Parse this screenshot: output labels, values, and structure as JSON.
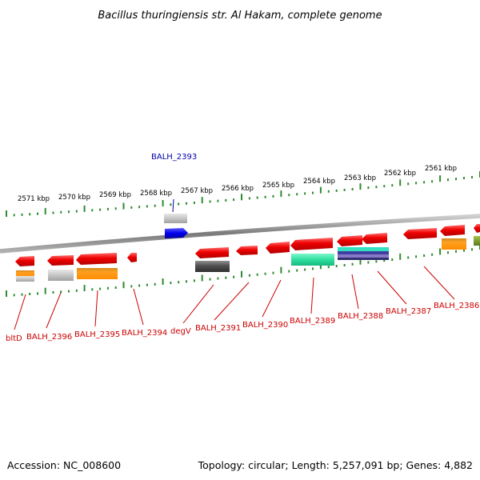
{
  "title": "Bacillus thuringiensis str. Al Hakam, complete genome",
  "footer": {
    "accession": "Accession: NC_008600",
    "summary": "Topology: circular; Length: 5,257,091 bp; Genes: 4,882"
  },
  "colors": {
    "tick": "#2e8b2e",
    "backbone": "#8c8c8c",
    "gene_red": "#e60000",
    "label_red": "#cc0000",
    "label_blue": "#0000aa",
    "blue": "#0000ee",
    "orange": "#ff9900",
    "teal": "#33e0a8",
    "purple": "#5a4fa0",
    "gray_light": "#c8c8c8",
    "gray_dark": "#555555",
    "olive": "#6b8e23"
  },
  "kbp_labels": [
    "2571 kbp",
    "2570 kbp",
    "2569 kbp",
    "2568 kbp",
    "2567 kbp",
    "2566 kbp",
    "2565 kbp",
    "2564 kbp",
    "2563 kbp",
    "2562 kbp",
    "2561 kbp"
  ],
  "genes_top": [
    {
      "name": "BALH_2393"
    }
  ],
  "genes_bottom": [
    {
      "name": "bltD"
    },
    {
      "name": "BALH_2396"
    },
    {
      "name": "BALH_2395"
    },
    {
      "name": "BALH_2394"
    },
    {
      "name": "degV"
    },
    {
      "name": "BALH_2391"
    },
    {
      "name": "BALH_2390"
    },
    {
      "name": "BALH_2389"
    },
    {
      "name": "BALH_2388"
    },
    {
      "name": "BALH_2387"
    },
    {
      "name": "BALH_2386"
    }
  ]
}
